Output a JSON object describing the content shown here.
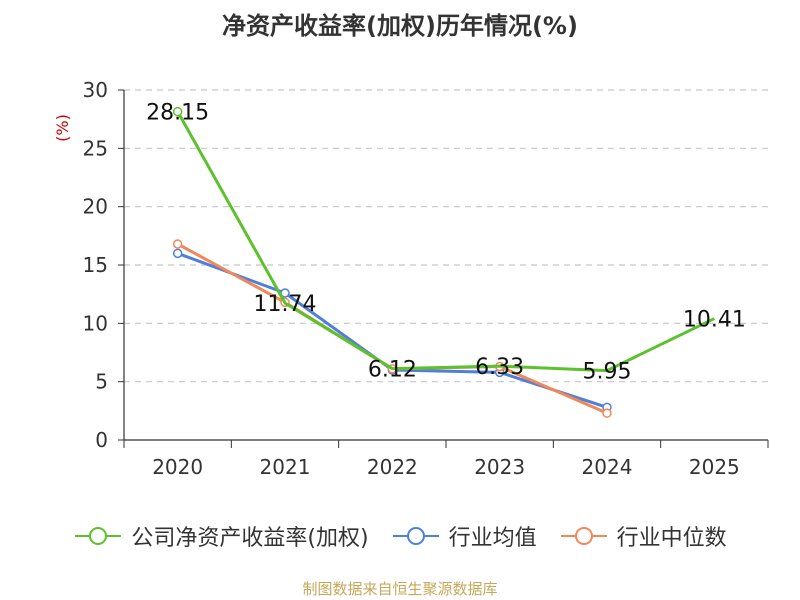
{
  "chart_data": {
    "type": "line",
    "title": "净资产收益率(加权)历年情况(%)",
    "ylabel": "(%)",
    "xlabel": "",
    "categories": [
      "2020",
      "2021",
      "2022",
      "2023",
      "2024",
      "2025"
    ],
    "ylim": [
      0,
      30
    ],
    "yticks": [
      0,
      5,
      10,
      15,
      20,
      25,
      30
    ],
    "grid": true,
    "legend_position": "bottom",
    "series": [
      {
        "name": "公司净资产收益率(加权)",
        "color": "#5cc12d",
        "values": [
          28.15,
          11.74,
          6.12,
          6.33,
          5.95,
          10.41
        ],
        "data_labels": [
          "28.15",
          "11.74",
          "6.12",
          "6.33",
          "5.95",
          "10.41"
        ]
      },
      {
        "name": "行业均值",
        "color": "#4f80d9",
        "values": [
          16.0,
          12.6,
          6.0,
          5.8,
          2.8,
          null
        ]
      },
      {
        "name": "行业中位数",
        "color": "#f0885a",
        "values": [
          16.8,
          11.8,
          6.1,
          6.3,
          2.3,
          null
        ]
      }
    ]
  },
  "source": "制图数据来自恒生聚源数据库"
}
